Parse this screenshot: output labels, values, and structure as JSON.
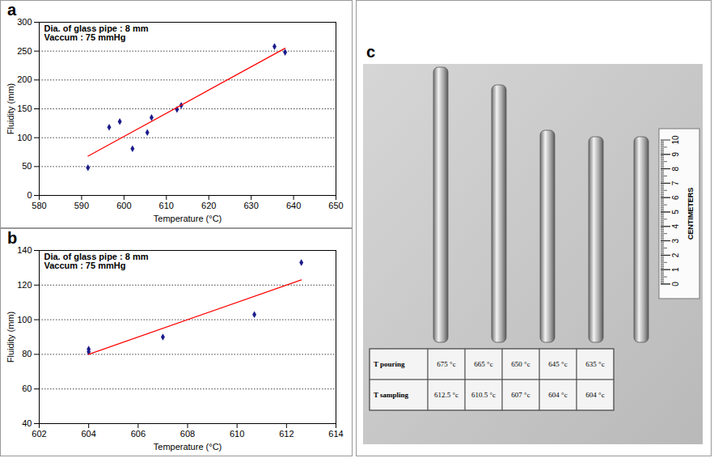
{
  "chart_data": [
    {
      "type": "scatter",
      "panel": "a",
      "annotations": [
        "Dia. of glass pipe : 8 mm",
        "Vaccum : 75 mmHg"
      ],
      "x_label": "Temperature (°C)",
      "y_label": "Fluidity (mm)",
      "xlim": [
        580,
        650
      ],
      "xticks": [
        580,
        590,
        600,
        610,
        620,
        630,
        640,
        650
      ],
      "ylim": [
        0,
        300
      ],
      "yticks": [
        0,
        50,
        100,
        150,
        200,
        250,
        300
      ],
      "grid": true,
      "series": [
        {
          "type": "scatter",
          "marker": "diamond",
          "color": "#1c1c8c",
          "x": [
            591.5,
            596.5,
            599,
            602,
            605.5,
            606.5,
            612.5,
            613.5,
            635.5,
            638
          ],
          "values": [
            48,
            118,
            128,
            81,
            109,
            135,
            149,
            156,
            258,
            248
          ]
        },
        {
          "type": "line",
          "line_style": "solid",
          "color": "#ff0000",
          "x": [
            591.5,
            638
          ],
          "values": [
            68,
            255
          ]
        }
      ]
    },
    {
      "type": "scatter",
      "panel": "b",
      "annotations": [
        "Dia. of glass pipe : 8 mm",
        "Vaccum : 75 mmHg"
      ],
      "x_label": "Temperature (°C)",
      "y_label": "Fluidity (mm)",
      "xlim": [
        602,
        614
      ],
      "xticks": [
        602,
        604,
        606,
        608,
        610,
        612,
        614
      ],
      "ylim": [
        40,
        140
      ],
      "yticks": [
        40,
        60,
        80,
        100,
        120,
        140
      ],
      "grid": true,
      "series": [
        {
          "type": "scatter",
          "marker": "diamond",
          "color": "#1c1c8c",
          "x": [
            604,
            604,
            607,
            610.7,
            612.6
          ],
          "values": [
            83,
            81.5,
            90,
            103,
            133
          ]
        },
        {
          "type": "line",
          "line_style": "solid",
          "color": "#ff0000",
          "x": [
            604,
            612.6
          ],
          "values": [
            80,
            123
          ]
        }
      ]
    }
  ],
  "photo": {
    "panel": "c",
    "table": {
      "rows": [
        [
          "T pouring",
          "675 °c",
          "665 °c",
          "650 °c",
          "645 °c",
          "635 °c"
        ],
        [
          "T sampling",
          "612.5 °c",
          "610.5 °c",
          "607 °c",
          "604 °c",
          "604 °c"
        ]
      ]
    },
    "ruler": {
      "label": "CENTIMETERS",
      "ticks": [
        0,
        1,
        2,
        3,
        4,
        5,
        6,
        7,
        8,
        9,
        10
      ]
    }
  }
}
